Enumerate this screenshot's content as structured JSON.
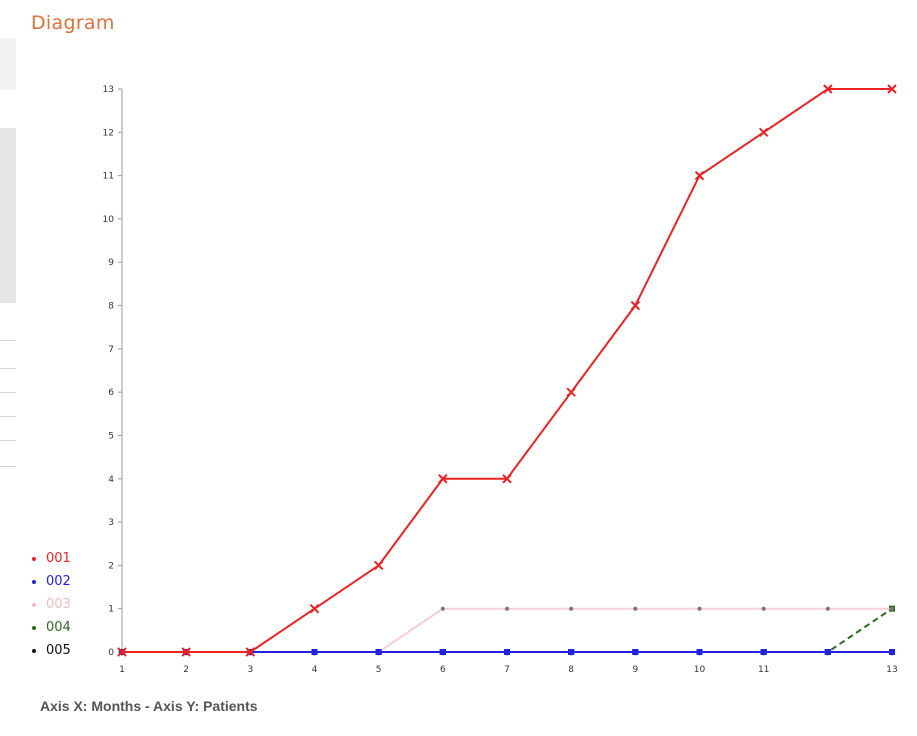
{
  "page": {
    "title": "Diagram"
  },
  "caption": "Axis X: Months - Axis Y: Patients",
  "chart_data": {
    "type": "line",
    "x": [
      1,
      2,
      3,
      4,
      5,
      6,
      7,
      8,
      9,
      10,
      11,
      12,
      13
    ],
    "xticks": [
      "1",
      "2",
      "3",
      "4",
      "5",
      "6",
      "7",
      "8",
      "9",
      "10",
      "11",
      "",
      "13"
    ],
    "yticks": [
      "0",
      "1",
      "2",
      "3",
      "4",
      "5",
      "6",
      "7",
      "8",
      "9",
      "10",
      "11",
      "12",
      "13"
    ],
    "xlim": [
      1,
      13
    ],
    "ylim": [
      0,
      13
    ],
    "grid": false,
    "legend_position": "bottom-left",
    "series": [
      {
        "name": "001",
        "color": "#ee2222",
        "marker": "x",
        "values": [
          0,
          0,
          0,
          1,
          2,
          4,
          4,
          6,
          8,
          11,
          12,
          13,
          13
        ]
      },
      {
        "name": "002",
        "color": "#2222dd",
        "marker": "square",
        "values": [
          0,
          0,
          0,
          0,
          0,
          0,
          0,
          0,
          0,
          0,
          0,
          0,
          0
        ]
      },
      {
        "name": "003",
        "color": "#f5b8c4",
        "marker": "dot",
        "values": [
          0,
          0,
          0,
          0,
          0,
          1,
          1,
          1,
          1,
          1,
          1,
          1,
          1
        ]
      },
      {
        "name": "004",
        "color": "#2a6b1e",
        "marker": "square",
        "values": [
          0,
          0,
          0,
          0,
          0,
          0,
          0,
          0,
          0,
          0,
          0,
          0,
          1
        ]
      },
      {
        "name": "005",
        "color": "#111111",
        "marker": "square",
        "values": [
          0,
          0,
          0,
          0,
          0,
          0,
          0,
          0,
          0,
          0,
          0,
          0,
          0
        ]
      }
    ]
  }
}
